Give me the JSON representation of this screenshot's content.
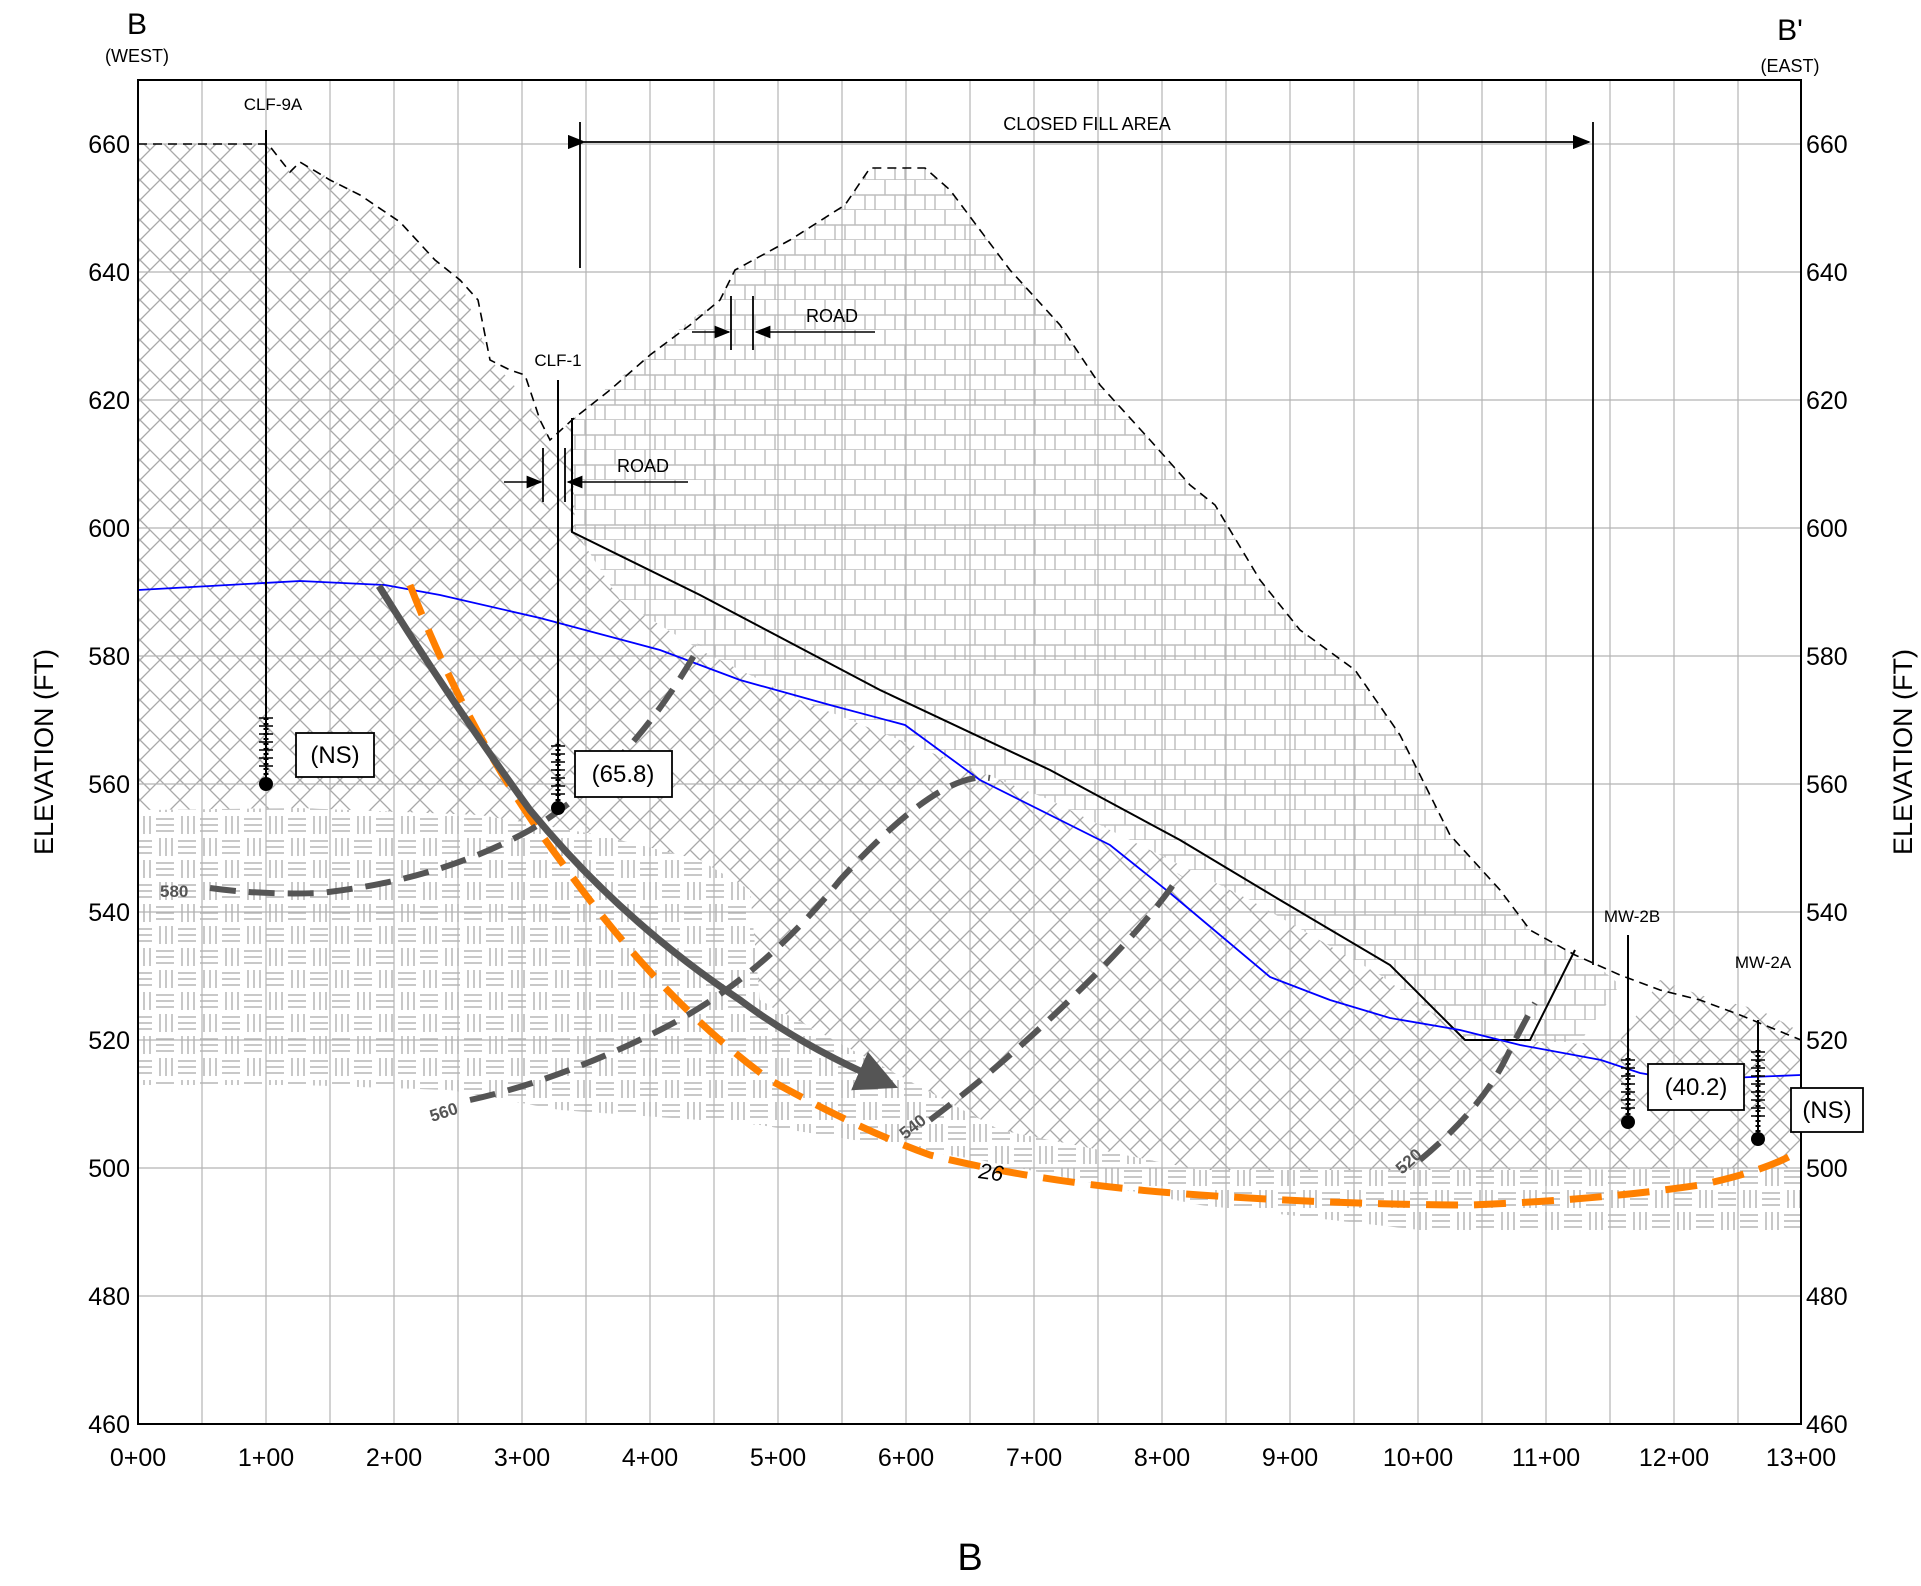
{
  "section": {
    "west_letter": "B",
    "west_dir": "(WEST)",
    "east_letter": "B'",
    "east_dir": "(EAST)",
    "bottom_title": "B"
  },
  "axes": {
    "y_title": "ELEVATION (FT)",
    "y_ticks": [
      "660",
      "640",
      "620",
      "600",
      "580",
      "560",
      "540",
      "520",
      "500",
      "480",
      "460"
    ],
    "x_ticks": [
      "0+00",
      "1+00",
      "2+00",
      "3+00",
      "4+00",
      "5+00",
      "6+00",
      "7+00",
      "8+00",
      "9+00",
      "10+00",
      "11+00",
      "12+00",
      "13+00"
    ]
  },
  "annotations": {
    "closed_fill": "CLOSED FILL AREA",
    "road_upper": "ROAD",
    "road_lower": "ROAD"
  },
  "wells": [
    {
      "name": "CLF-9A",
      "value": "(NS)"
    },
    {
      "name": "CLF-1",
      "value": "(65.8)"
    },
    {
      "name": "MW-2B",
      "value": "(40.2)"
    },
    {
      "name": "MW-2A",
      "value": "(NS)"
    }
  ],
  "contours": {
    "c580": "580",
    "c560": "560",
    "c540": "540",
    "c520": "520",
    "orange": "26"
  },
  "colors": {
    "water_table": "#0000ff",
    "orange_contour": "#ff8000",
    "gray_contour": "#555555",
    "flow_arrow": "#555555"
  }
}
